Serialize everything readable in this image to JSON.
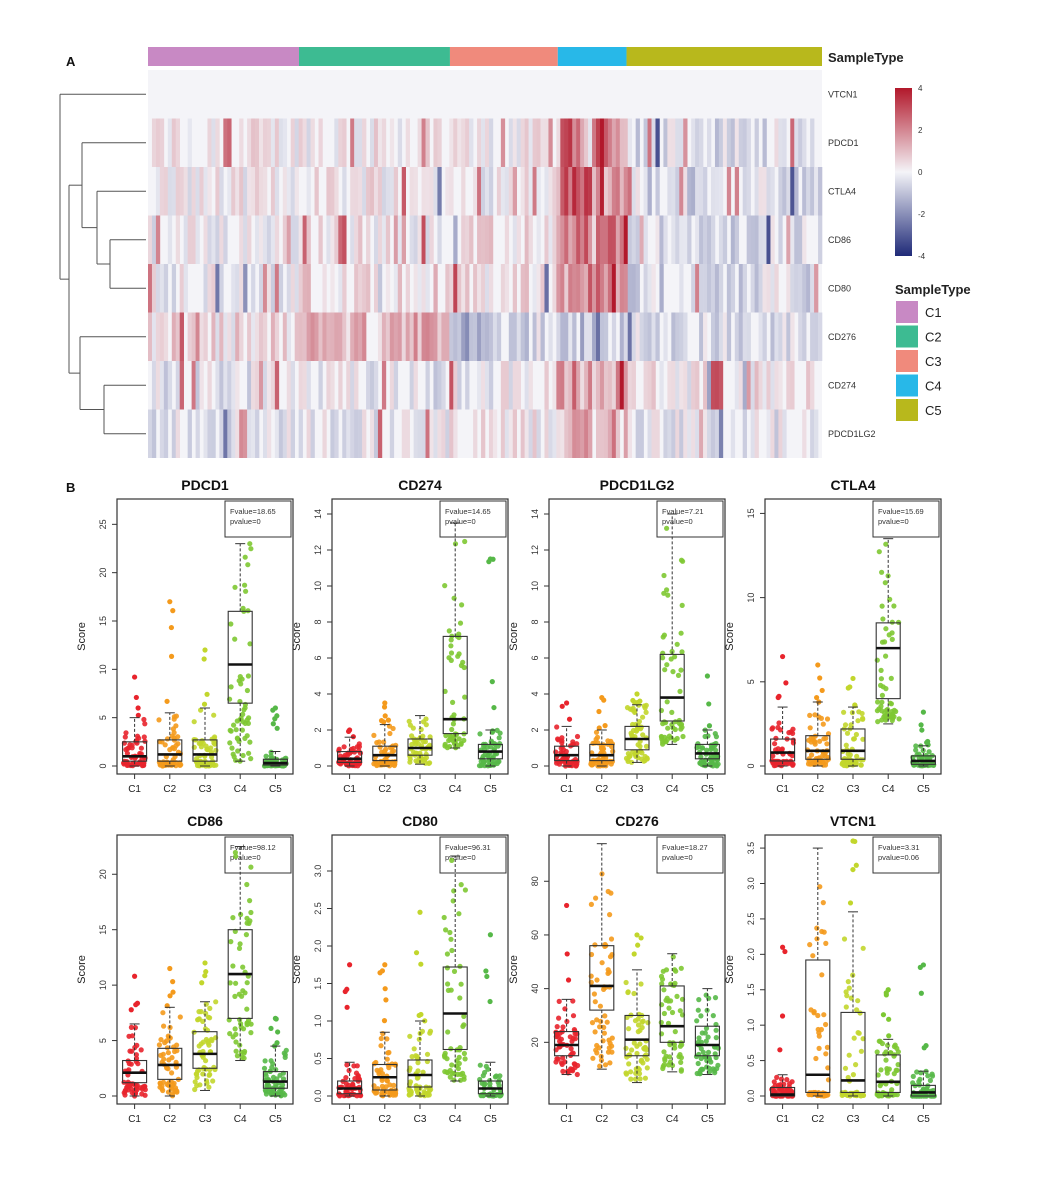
{
  "panel_a_label": "A",
  "panel_b_label": "B",
  "colors": {
    "C1": "#c889c4",
    "C2": "#3dbb92",
    "C3": "#f08a7c",
    "C4": "#28b8e8",
    "C5": "#b8b81c",
    "pt_C1": "#e8242c",
    "pt_C2": "#f49a1c",
    "pt_C3": "#c2d62c",
    "pt_C4": "#7ec832",
    "pt_C5": "#56b848",
    "heat_high": "#b2182b",
    "heat_mid": "#f4f4f8",
    "heat_low": "#1f2a78"
  },
  "chart_data": [
    {
      "type": "heatmap",
      "annotation_title": "SampleType",
      "legend_title": "SampleType",
      "groups": [
        "C1",
        "C2",
        "C3",
        "C4",
        "C5"
      ],
      "group_fractions": [
        0.224,
        0.224,
        0.16,
        0.102,
        0.29
      ],
      "genes": [
        "VTCN1",
        "PDCD1",
        "CTLA4",
        "CD86",
        "CD80",
        "CD276",
        "CD274",
        "PDCD1LG2"
      ],
      "scale_ticks": [
        "4",
        "2",
        "0",
        "-2",
        "-4"
      ],
      "scale_range": [
        -4,
        4
      ],
      "dendrogram": "row"
    },
    {
      "type": "box",
      "title": "PDCD1",
      "ylabel": "Score",
      "categories": [
        "C1",
        "C2",
        "C3",
        "C4",
        "C5"
      ],
      "stat_lines": [
        "Fvalue=18.65",
        "pvalue=0"
      ],
      "ylim": [
        0,
        27
      ],
      "yticks": [
        0,
        5,
        10,
        15,
        20,
        25
      ],
      "ytick_labels": [
        "0",
        "5",
        "10",
        "15",
        "20",
        "25"
      ],
      "boxes": [
        {
          "q1": 0.5,
          "median": 1.0,
          "q3": 2.5,
          "whisker_low": 0,
          "whisker_high": 5.0,
          "max": 9.2
        },
        {
          "q1": 0.5,
          "median": 1.2,
          "q3": 2.7,
          "whisker_low": 0,
          "whisker_high": 5.5,
          "max": 17.0
        },
        {
          "q1": 0.5,
          "median": 1.2,
          "q3": 2.7,
          "whisker_low": 0,
          "whisker_high": 6.0,
          "max": 12.0
        },
        {
          "q1": 6.5,
          "median": 10.5,
          "q3": 16.0,
          "whisker_low": 0.5,
          "whisker_high": 23.0,
          "max": 23.0
        },
        {
          "q1": 0.1,
          "median": 0.3,
          "q3": 0.7,
          "whisker_low": 0,
          "whisker_high": 1.5,
          "max": 6.0
        }
      ]
    },
    {
      "type": "box",
      "title": "CD274",
      "ylabel": "Score",
      "categories": [
        "C1",
        "C2",
        "C3",
        "C4",
        "C5"
      ],
      "stat_lines": [
        "Fvalue=14.65",
        "pvalue=0"
      ],
      "ylim": [
        0,
        14.5
      ],
      "yticks": [
        0,
        2,
        4,
        6,
        8,
        10,
        12,
        14
      ],
      "ytick_labels": [
        "0",
        "2",
        "4",
        "6",
        "8",
        "10",
        "12",
        "14"
      ],
      "boxes": [
        {
          "q1": 0.2,
          "median": 0.4,
          "q3": 0.8,
          "whisker_low": 0,
          "whisker_high": 1.6,
          "max": 2.0
        },
        {
          "q1": 0.3,
          "median": 0.6,
          "q3": 1.1,
          "whisker_low": 0,
          "whisker_high": 2.3,
          "max": 3.5
        },
        {
          "q1": 0.6,
          "median": 1.0,
          "q3": 1.5,
          "whisker_low": 0.1,
          "whisker_high": 2.8,
          "max": 2.8
        },
        {
          "q1": 1.8,
          "median": 2.6,
          "q3": 7.2,
          "whisker_low": 1.0,
          "whisker_high": 13.5,
          "max": 13.5
        },
        {
          "q1": 0.4,
          "median": 0.8,
          "q3": 1.2,
          "whisker_low": 0,
          "whisker_high": 2.0,
          "max": 11.5
        }
      ]
    },
    {
      "type": "box",
      "title": "PDCD1LG2",
      "ylabel": "Score",
      "categories": [
        "C1",
        "C2",
        "C3",
        "C4",
        "C5"
      ],
      "stat_lines": [
        "Fvalue=7.21",
        "pvalue=0"
      ],
      "ylim": [
        0,
        14.5
      ],
      "yticks": [
        0,
        2,
        4,
        6,
        8,
        10,
        12,
        14
      ],
      "ytick_labels": [
        "0",
        "2",
        "4",
        "6",
        "8",
        "10",
        "12",
        "14"
      ],
      "boxes": [
        {
          "q1": 0.3,
          "median": 0.6,
          "q3": 1.1,
          "whisker_low": 0,
          "whisker_high": 2.2,
          "max": 3.5
        },
        {
          "q1": 0.3,
          "median": 0.6,
          "q3": 1.2,
          "whisker_low": 0,
          "whisker_high": 2.0,
          "max": 3.8
        },
        {
          "q1": 0.9,
          "median": 1.5,
          "q3": 2.2,
          "whisker_low": 0.2,
          "whisker_high": 3.4,
          "max": 4.0
        },
        {
          "q1": 2.5,
          "median": 3.8,
          "q3": 6.2,
          "whisker_low": 1.2,
          "whisker_high": 14.0,
          "max": 14.0
        },
        {
          "q1": 0.4,
          "median": 0.7,
          "q3": 1.2,
          "whisker_low": 0,
          "whisker_high": 2.0,
          "max": 5.0
        }
      ]
    },
    {
      "type": "box",
      "title": "CTLA4",
      "ylabel": "Score",
      "categories": [
        "C1",
        "C2",
        "C3",
        "C4",
        "C5"
      ],
      "stat_lines": [
        "Fvalue=15.69",
        "pvalue=0"
      ],
      "ylim": [
        0,
        15.5
      ],
      "yticks": [
        0,
        5,
        10,
        15
      ],
      "ytick_labels": [
        "0",
        "5",
        "10",
        "15"
      ],
      "boxes": [
        {
          "q1": 0.3,
          "median": 0.8,
          "q3": 1.6,
          "whisker_low": 0,
          "whisker_high": 3.5,
          "max": 6.5
        },
        {
          "q1": 0.4,
          "median": 0.9,
          "q3": 1.8,
          "whisker_low": 0,
          "whisker_high": 3.8,
          "max": 6.0
        },
        {
          "q1": 0.4,
          "median": 0.9,
          "q3": 2.2,
          "whisker_low": 0,
          "whisker_high": 3.5,
          "max": 5.2
        },
        {
          "q1": 4.0,
          "median": 7.0,
          "q3": 8.5,
          "whisker_low": 2.5,
          "whisker_high": 13.5,
          "max": 13.5
        },
        {
          "q1": 0.1,
          "median": 0.3,
          "q3": 0.6,
          "whisker_low": 0,
          "whisker_high": 1.2,
          "max": 3.2
        }
      ]
    },
    {
      "type": "box",
      "title": "CD86",
      "ylabel": "Score",
      "categories": [
        "C1",
        "C2",
        "C3",
        "C4",
        "C5"
      ],
      "stat_lines": [
        "Fvalue=98.12",
        "pvalue=0"
      ],
      "ylim": [
        0,
        23
      ],
      "yticks": [
        0,
        5,
        10,
        15,
        20
      ],
      "ytick_labels": [
        "0",
        "5",
        "10",
        "15",
        "20"
      ],
      "boxes": [
        {
          "q1": 1.2,
          "median": 2.1,
          "q3": 3.2,
          "whisker_low": 0,
          "whisker_high": 6.5,
          "max": 10.8
        },
        {
          "q1": 1.5,
          "median": 2.8,
          "q3": 4.3,
          "whisker_low": 0,
          "whisker_high": 8.0,
          "max": 11.5
        },
        {
          "q1": 2.5,
          "median": 3.8,
          "q3": 5.8,
          "whisker_low": 0.5,
          "whisker_high": 8.5,
          "max": 12.0
        },
        {
          "q1": 7.0,
          "median": 11.0,
          "q3": 15.0,
          "whisker_low": 3.2,
          "whisker_high": 22.5,
          "max": 22.5
        },
        {
          "q1": 0.7,
          "median": 1.3,
          "q3": 2.2,
          "whisker_low": 0,
          "whisker_high": 4.5,
          "max": 7.0
        }
      ]
    },
    {
      "type": "box",
      "title": "CD80",
      "ylabel": "Score",
      "categories": [
        "C1",
        "C2",
        "C3",
        "C4",
        "C5"
      ],
      "stat_lines": [
        "Fvalue=96.31",
        "pvalue=0"
      ],
      "ylim": [
        0,
        3.4
      ],
      "yticks": [
        0,
        0.5,
        1.0,
        1.5,
        2.0,
        2.5,
        3.0
      ],
      "ytick_labels": [
        "0.0",
        "0.5",
        "1.0",
        "1.5",
        "2.0",
        "2.5",
        "3.0"
      ],
      "boxes": [
        {
          "q1": 0.03,
          "median": 0.1,
          "q3": 0.2,
          "whisker_low": 0,
          "whisker_high": 0.45,
          "max": 1.75
        },
        {
          "q1": 0.08,
          "median": 0.25,
          "q3": 0.42,
          "whisker_low": 0,
          "whisker_high": 0.85,
          "max": 1.75
        },
        {
          "q1": 0.12,
          "median": 0.28,
          "q3": 0.48,
          "whisker_low": 0,
          "whisker_high": 1.0,
          "max": 2.45
        },
        {
          "q1": 0.62,
          "median": 1.1,
          "q3": 1.72,
          "whisker_low": 0.2,
          "whisker_high": 3.2,
          "max": 3.2
        },
        {
          "q1": 0.03,
          "median": 0.1,
          "q3": 0.2,
          "whisker_low": 0,
          "whisker_high": 0.45,
          "max": 2.15
        }
      ]
    },
    {
      "type": "box",
      "title": "CD276",
      "ylabel": "Score",
      "categories": [
        "C1",
        "C2",
        "C3",
        "C4",
        "C5"
      ],
      "stat_lines": [
        "Fvalue=18.27",
        "pvalue=0"
      ],
      "ylim": [
        0,
        95
      ],
      "yticks": [
        20,
        40,
        60,
        80
      ],
      "ytick_labels": [
        "20",
        "40",
        "60",
        "80"
      ],
      "boxes": [
        {
          "q1": 15,
          "median": 19,
          "q3": 24,
          "whisker_low": 8,
          "whisker_high": 36,
          "max": 71
        },
        {
          "q1": 32,
          "median": 41,
          "q3": 56,
          "whisker_low": 10,
          "whisker_high": 94,
          "max": 94
        },
        {
          "q1": 15,
          "median": 21,
          "q3": 30,
          "whisker_low": 5,
          "whisker_high": 47,
          "max": 60
        },
        {
          "q1": 20,
          "median": 26,
          "q3": 41,
          "whisker_low": 9,
          "whisker_high": 53,
          "max": 53
        },
        {
          "q1": 15,
          "median": 19,
          "q3": 26,
          "whisker_low": 8,
          "whisker_high": 40,
          "max": 40
        }
      ]
    },
    {
      "type": "box",
      "title": "VTCN1",
      "ylabel": "Score",
      "categories": [
        "C1",
        "C2",
        "C3",
        "C4",
        "C5"
      ],
      "stat_lines": [
        "Fvalue=3.31",
        "pvalue=0.06"
      ],
      "ylim": [
        0,
        3.6
      ],
      "yticks": [
        0,
        0.5,
        1.0,
        1.5,
        2.0,
        2.5,
        3.0,
        3.5
      ],
      "ytick_labels": [
        "0.0",
        "0.5",
        "1.0",
        "1.5",
        "2.0",
        "2.5",
        "3.0",
        "3.5"
      ],
      "boxes": [
        {
          "q1": 0.0,
          "median": 0.02,
          "q3": 0.12,
          "whisker_low": 0,
          "whisker_high": 0.3,
          "max": 2.1
        },
        {
          "q1": 0.05,
          "median": 0.3,
          "q3": 1.92,
          "whisker_low": 0,
          "whisker_high": 3.5,
          "max": 3.5
        },
        {
          "q1": 0.05,
          "median": 0.22,
          "q3": 1.18,
          "whisker_low": 0,
          "whisker_high": 2.6,
          "max": 3.6
        },
        {
          "q1": 0.05,
          "median": 0.2,
          "q3": 0.58,
          "whisker_low": 0,
          "whisker_high": 0.8,
          "max": 1.5
        },
        {
          "q1": 0.0,
          "median": 0.05,
          "q3": 0.15,
          "whisker_low": 0,
          "whisker_high": 0.35,
          "max": 1.85
        }
      ]
    }
  ]
}
